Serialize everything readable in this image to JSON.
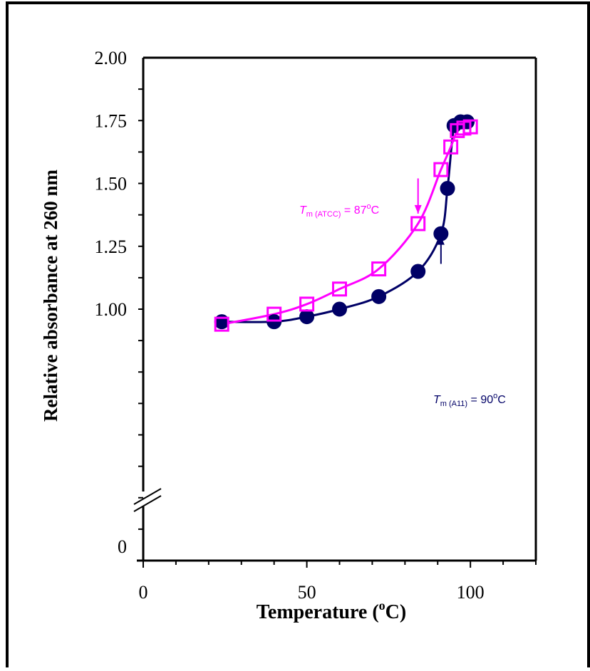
{
  "chart_data": {
    "type": "scatter",
    "xlabel": "Temperature (",
    "xlabel_sup": "o",
    "xlabel_end": "C)",
    "ylabel": "Relative absorbance at 260 nm",
    "x_ticks": [
      {
        "value": 0,
        "label": "0"
      },
      {
        "value": 50,
        "label": "50"
      },
      {
        "value": 100,
        "label": "100"
      }
    ],
    "y_ticks": [
      {
        "value": 0,
        "label": "0"
      },
      {
        "value": 1.0,
        "label": "1.00"
      },
      {
        "value": 1.25,
        "label": "1.25"
      },
      {
        "value": 1.5,
        "label": "1.50"
      },
      {
        "value": 1.75,
        "label": "1.75"
      },
      {
        "value": 2.0,
        "label": "2.00"
      }
    ],
    "xlim": [
      0,
      120
    ],
    "ylim": [
      0,
      2.0
    ],
    "axis_break": "between 0 and 0.9",
    "series": [
      {
        "marker": "filled-circle",
        "color": "#000066",
        "x": [
          24,
          40,
          50,
          60,
          72,
          84,
          91,
          93,
          95,
          97,
          99
        ],
        "y": [
          0.95,
          0.95,
          0.97,
          1.0,
          1.05,
          1.15,
          1.3,
          1.48,
          1.73,
          1.745,
          1.745
        ]
      },
      {
        "marker": "open-square",
        "color": "#ff00ff",
        "x": [
          24,
          40,
          50,
          60,
          72,
          84,
          91,
          94,
          96,
          98,
          100
        ],
        "y": [
          0.94,
          0.98,
          1.02,
          1.08,
          1.16,
          1.34,
          1.555,
          1.645,
          1.71,
          1.72,
          1.725
        ]
      }
    ],
    "annotations": [
      {
        "id": "atcc",
        "italic": "T",
        "sub": "m (ATCC)",
        "rest": " = 87",
        "sup": "o",
        "end": "C",
        "color": "#ff00ff",
        "arrow_x": 84,
        "arrow_from_y": 1.52,
        "arrow_to_y": 1.38
      },
      {
        "id": "a11",
        "italic": "T",
        "sub": "m (A11)",
        "rest": " = 90",
        "sup": "o",
        "end": "C",
        "color": "#000066",
        "arrow_x": 91,
        "arrow_from_y": 1.18,
        "arrow_to_y": 1.29
      }
    ]
  }
}
